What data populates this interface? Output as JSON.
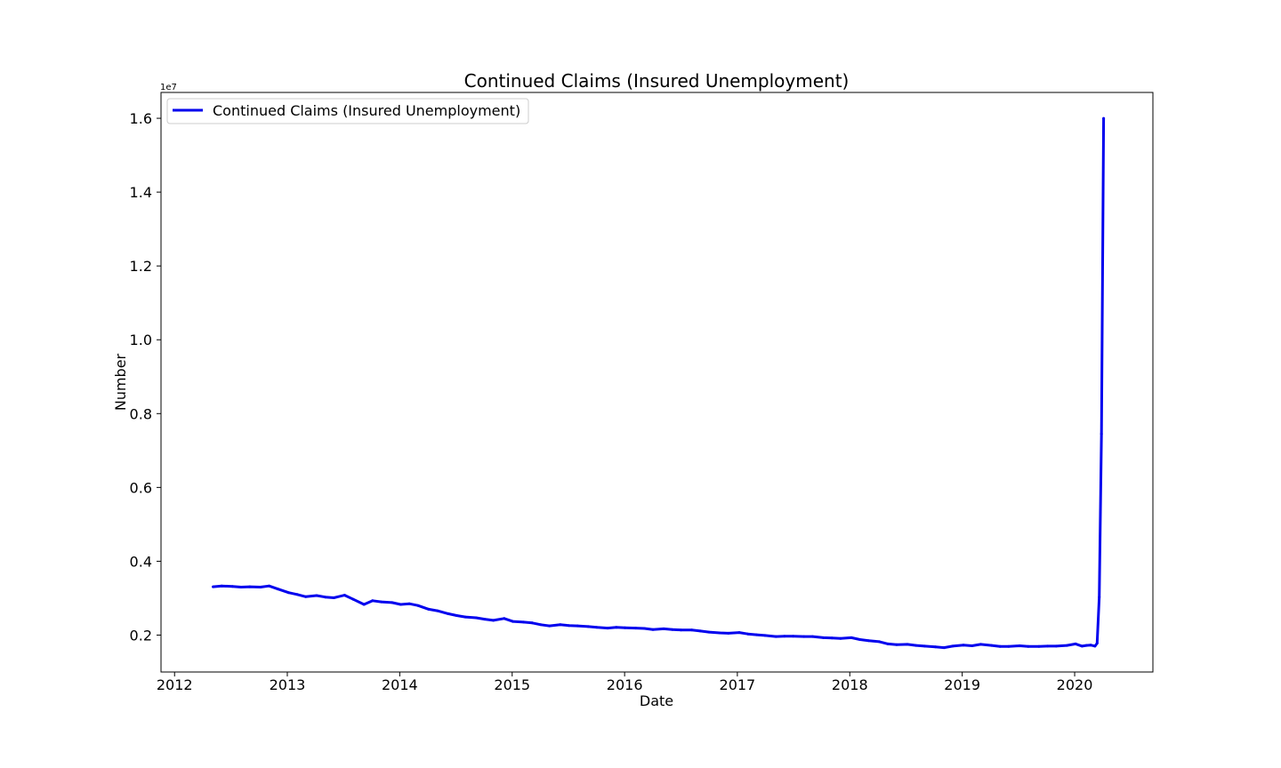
{
  "chart_data": {
    "type": "line",
    "title": "Continued Claims (Insured Unemployment)",
    "xlabel": "Date",
    "ylabel": "Number",
    "y_offset_label": "1e7",
    "legend_position": "top-left",
    "grid": false,
    "x_ticks": [
      "2012",
      "2013",
      "2014",
      "2015",
      "2016",
      "2017",
      "2018",
      "2019",
      "2020"
    ],
    "y_ticks": [
      "0.2",
      "0.4",
      "0.6",
      "0.8",
      "1.0",
      "1.2",
      "1.4",
      "1.6"
    ],
    "xlim": [
      "2011-11-18",
      "2020-09-11"
    ],
    "ylim": [
      1000000,
      16700000
    ],
    "series": [
      {
        "name": "Continued Claims (Insured Unemployment)",
        "color": "#0000ee",
        "x": [
          "2012-05-05",
          "2012-06-02",
          "2012-07-07",
          "2012-08-04",
          "2012-09-01",
          "2012-10-06",
          "2012-11-03",
          "2012-12-01",
          "2013-01-05",
          "2013-02-02",
          "2013-03-02",
          "2013-04-06",
          "2013-05-04",
          "2013-06-01",
          "2013-07-06",
          "2013-08-03",
          "2013-09-07",
          "2013-10-05",
          "2013-11-02",
          "2013-12-07",
          "2014-01-04",
          "2014-02-01",
          "2014-03-01",
          "2014-04-05",
          "2014-05-03",
          "2014-06-07",
          "2014-07-05",
          "2014-08-02",
          "2014-09-06",
          "2014-10-04",
          "2014-11-01",
          "2014-12-06",
          "2015-01-03",
          "2015-02-07",
          "2015-03-07",
          "2015-04-04",
          "2015-05-02",
          "2015-06-06",
          "2015-07-04",
          "2015-08-01",
          "2015-09-05",
          "2015-10-03",
          "2015-11-07",
          "2015-12-05",
          "2016-01-02",
          "2016-02-06",
          "2016-03-05",
          "2016-04-02",
          "2016-05-07",
          "2016-06-04",
          "2016-07-02",
          "2016-08-06",
          "2016-09-03",
          "2016-10-01",
          "2016-11-05",
          "2016-12-03",
          "2017-01-07",
          "2017-02-04",
          "2017-03-04",
          "2017-04-01",
          "2017-05-06",
          "2017-06-03",
          "2017-07-01",
          "2017-08-05",
          "2017-09-02",
          "2017-10-07",
          "2017-11-04",
          "2017-12-02",
          "2018-01-06",
          "2018-02-03",
          "2018-03-03",
          "2018-04-07",
          "2018-05-05",
          "2018-06-02",
          "2018-07-07",
          "2018-08-04",
          "2018-09-01",
          "2018-10-06",
          "2018-11-03",
          "2018-12-01",
          "2019-01-05",
          "2019-02-02",
          "2019-03-02",
          "2019-04-06",
          "2019-05-04",
          "2019-06-01",
          "2019-07-06",
          "2019-08-03",
          "2019-09-07",
          "2019-10-05",
          "2019-11-02",
          "2019-12-07",
          "2020-01-04",
          "2020-01-25",
          "2020-02-08",
          "2020-02-22",
          "2020-03-07",
          "2020-03-14",
          "2020-03-21",
          "2020-03-28",
          "2020-04-04"
        ],
        "values": [
          3310000,
          3330000,
          3320000,
          3300000,
          3310000,
          3300000,
          3330000,
          3250000,
          3150000,
          3100000,
          3040000,
          3070000,
          3030000,
          3010000,
          3080000,
          2970000,
          2830000,
          2930000,
          2900000,
          2880000,
          2830000,
          2850000,
          2800000,
          2700000,
          2660000,
          2580000,
          2530000,
          2490000,
          2470000,
          2430000,
          2400000,
          2450000,
          2370000,
          2350000,
          2330000,
          2280000,
          2250000,
          2280000,
          2260000,
          2250000,
          2230000,
          2210000,
          2190000,
          2210000,
          2200000,
          2190000,
          2180000,
          2150000,
          2170000,
          2150000,
          2140000,
          2140000,
          2110000,
          2080000,
          2060000,
          2050000,
          2070000,
          2030000,
          2010000,
          1990000,
          1960000,
          1970000,
          1970000,
          1960000,
          1960000,
          1930000,
          1920000,
          1910000,
          1930000,
          1880000,
          1850000,
          1820000,
          1760000,
          1740000,
          1750000,
          1720000,
          1700000,
          1680000,
          1660000,
          1700000,
          1730000,
          1710000,
          1750000,
          1720000,
          1690000,
          1690000,
          1710000,
          1690000,
          1690000,
          1700000,
          1700000,
          1720000,
          1760000,
          1700000,
          1720000,
          1730000,
          1700000,
          1780000,
          3030000,
          7450000,
          16000000
        ]
      }
    ]
  }
}
